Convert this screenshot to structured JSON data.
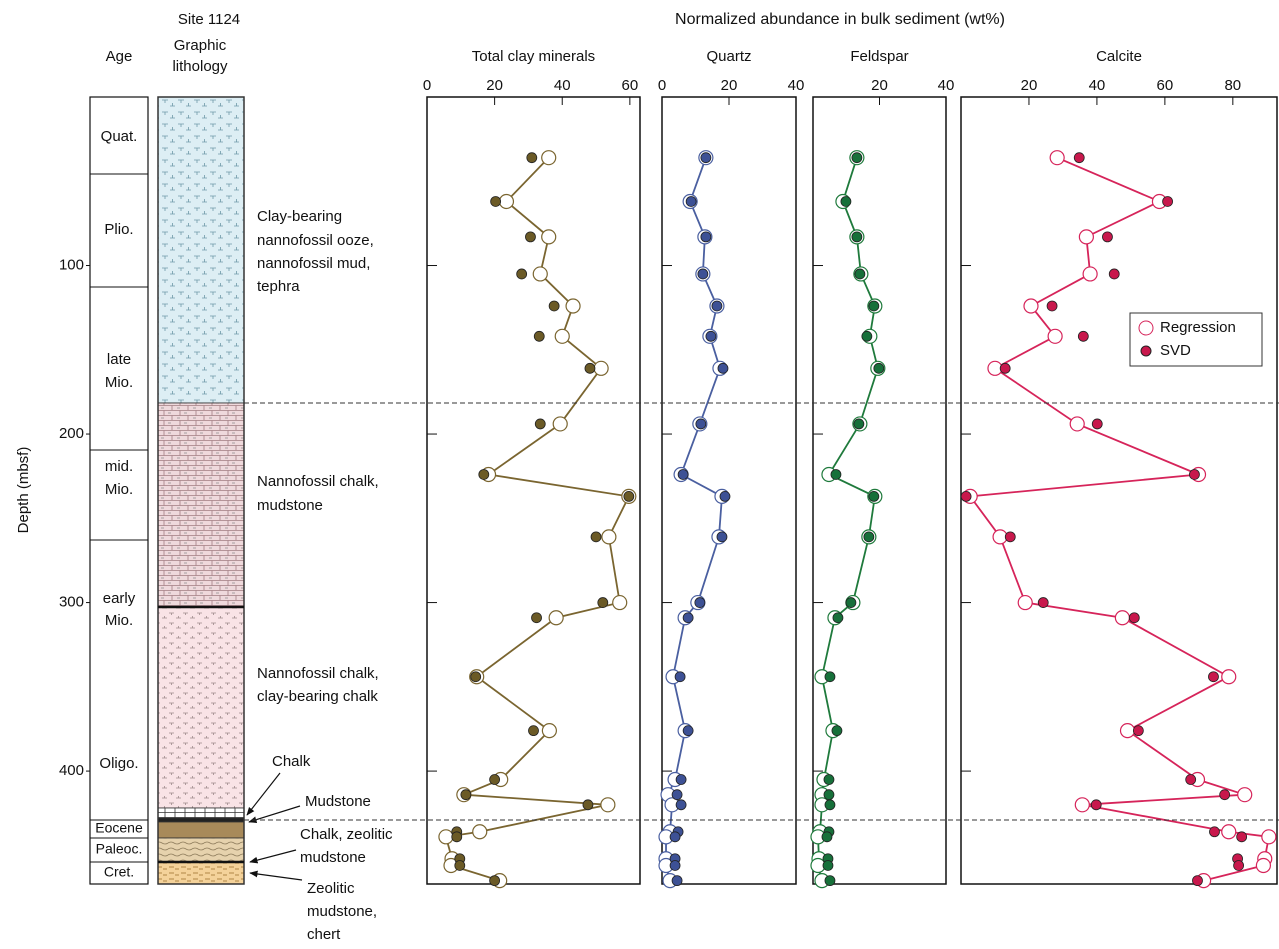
{
  "header": {
    "site": "Site 1124",
    "title": "Normalized abundance in bulk sediment (wt%)"
  },
  "columns": {
    "age": "Age",
    "lithology": [
      "Graphic",
      "lithology"
    ]
  },
  "ages": [
    [
      "Quat."
    ],
    [
      "Plio."
    ],
    [
      "late",
      "Mio."
    ],
    [
      "mid.",
      "Mio."
    ],
    [
      "early",
      "Mio."
    ],
    [
      "Oligo."
    ],
    [
      "Eocene"
    ],
    [
      "Paleoc."
    ],
    [
      "Cret."
    ]
  ],
  "lithology_notes": [
    [
      "Clay-bearing",
      "nannofossil ooze,",
      "nannofossil mud,",
      "tephra"
    ],
    [
      "Nannofossil chalk,",
      "mudstone"
    ],
    [
      "Nannofossil chalk,",
      "clay-bearing chalk"
    ],
    [
      "Chalk"
    ],
    [
      "Mudstone"
    ],
    [
      "Chalk, zeolitic",
      "mudstone"
    ],
    [
      "Zeolitic",
      "mudstone,",
      "chert"
    ]
  ],
  "depth_axis": {
    "label": "Depth (mbsf)",
    "ylim": [
      0,
      467
    ],
    "yticks": [
      100,
      200,
      300,
      400
    ]
  },
  "chart_data": [
    {
      "type": "line",
      "title": "Total clay minerals",
      "xlim": [
        0,
        63
      ],
      "xticks": [
        0,
        20,
        40,
        60
      ],
      "y": [
        36,
        62,
        83,
        105,
        124,
        142,
        161,
        194,
        224,
        237,
        261,
        300,
        309,
        344,
        376,
        405,
        414,
        420,
        436,
        439,
        452,
        456,
        465
      ],
      "series": [
        {
          "name": "Regression",
          "color": "#7a6530",
          "line": true,
          "marker": "hollow",
          "values": [
            36,
            23.5,
            36,
            33.5,
            43.2,
            40,
            51.5,
            39.4,
            18.2,
            59.7,
            53.8,
            57,
            38.2,
            14.7,
            36.2,
            21.8,
            10.9,
            53.5,
            15.6,
            5.6,
            7.4,
            7.1,
            21.5
          ]
        },
        {
          "name": "SVD",
          "color": "#6b5a26",
          "line": false,
          "marker": "filled",
          "values": [
            31,
            20.3,
            30.6,
            28,
            37.6,
            33.2,
            48.2,
            33.5,
            16.8,
            59.7,
            50,
            52,
            32.4,
            14.4,
            31.5,
            20,
            11.5,
            47.6,
            8.8,
            8.8,
            9.7,
            9.7,
            20
          ]
        }
      ]
    },
    {
      "type": "line",
      "title": "Quartz",
      "xlim": [
        0,
        40
      ],
      "xticks": [
        0,
        20,
        40
      ],
      "y": [
        36,
        62,
        83,
        105,
        124,
        142,
        161,
        194,
        224,
        237,
        261,
        300,
        309,
        344,
        376,
        405,
        414,
        420,
        436,
        439,
        452,
        456,
        465
      ],
      "series": [
        {
          "name": "Regression",
          "color": "#4a5fa0",
          "line": true,
          "marker": "hollow",
          "values": [
            13.1,
            8.4,
            12.8,
            12.2,
            16.4,
            14.3,
            17.3,
            11.3,
            5.7,
            17.9,
            17,
            10.7,
            6.9,
            3.3,
            6.9,
            3.9,
            1.8,
            3,
            2.4,
            1.2,
            1.2,
            1.2,
            2.4
          ]
        },
        {
          "name": "SVD",
          "color": "#3d5195",
          "line": false,
          "marker": "filled",
          "values": [
            13.1,
            8.7,
            13.1,
            12.2,
            16.4,
            14.6,
            18.2,
            11.6,
            6.3,
            18.8,
            17.9,
            11.3,
            7.8,
            5.4,
            7.8,
            5.7,
            4.5,
            5.7,
            4.8,
            3.9,
            3.9,
            3.9,
            4.5
          ]
        }
      ]
    },
    {
      "type": "line",
      "title": "Feldspar",
      "xlim": [
        0,
        40
      ],
      "xticks": [
        20,
        40
      ],
      "y": [
        36,
        62,
        83,
        105,
        124,
        142,
        161,
        194,
        224,
        237,
        261,
        300,
        309,
        344,
        376,
        405,
        414,
        420,
        436,
        439,
        452,
        456,
        465
      ],
      "series": [
        {
          "name": "Regression",
          "color": "#1f7a3c",
          "line": true,
          "marker": "hollow",
          "values": [
            13.2,
            9,
            13.2,
            14.4,
            18.6,
            17.1,
            19.5,
            14.1,
            4.8,
            18.6,
            16.8,
            12,
            6.6,
            2.7,
            6,
            3.3,
            2.7,
            2.7,
            2.1,
            1.5,
            1.8,
            1.5,
            2.7
          ]
        },
        {
          "name": "SVD",
          "color": "#17703a",
          "line": false,
          "marker": "filled",
          "values": [
            13.2,
            9.9,
            13.2,
            14.1,
            18.3,
            16.2,
            19.8,
            13.8,
            6.9,
            18.3,
            16.8,
            11.4,
            7.5,
            5.1,
            7.2,
            4.8,
            4.8,
            5.1,
            4.8,
            4.2,
            4.5,
            4.5,
            5.1
          ]
        }
      ]
    },
    {
      "type": "line",
      "title": "Calcite",
      "xlim": [
        0,
        93
      ],
      "xticks": [
        20,
        40,
        60,
        80
      ],
      "legend": "right",
      "y": [
        36,
        62,
        83,
        105,
        124,
        142,
        161,
        194,
        224,
        237,
        261,
        300,
        309,
        344,
        376,
        405,
        414,
        420,
        436,
        439,
        452,
        456,
        465
      ],
      "series": [
        {
          "name": "Regression",
          "color": "#d6245a",
          "line": true,
          "marker": "hollow",
          "values": [
            28.3,
            58.4,
            36.9,
            38,
            20.6,
            27.7,
            10,
            34.2,
            69.9,
            2.7,
            11.5,
            18.9,
            47.5,
            78.8,
            49,
            69.6,
            83.5,
            35.7,
            78.8,
            90.6,
            89.4,
            89,
            71.4
          ]
        },
        {
          "name": "SVD",
          "color": "#c8184c",
          "line": false,
          "marker": "filled",
          "values": [
            34.8,
            60.8,
            43.1,
            45.1,
            26.8,
            36,
            13,
            40.1,
            68.7,
            1.5,
            14.5,
            24.2,
            51,
            74.3,
            52.2,
            67.6,
            77.6,
            39.8,
            74.6,
            82.6,
            81.4,
            81.7,
            69.6
          ]
        }
      ]
    }
  ]
}
